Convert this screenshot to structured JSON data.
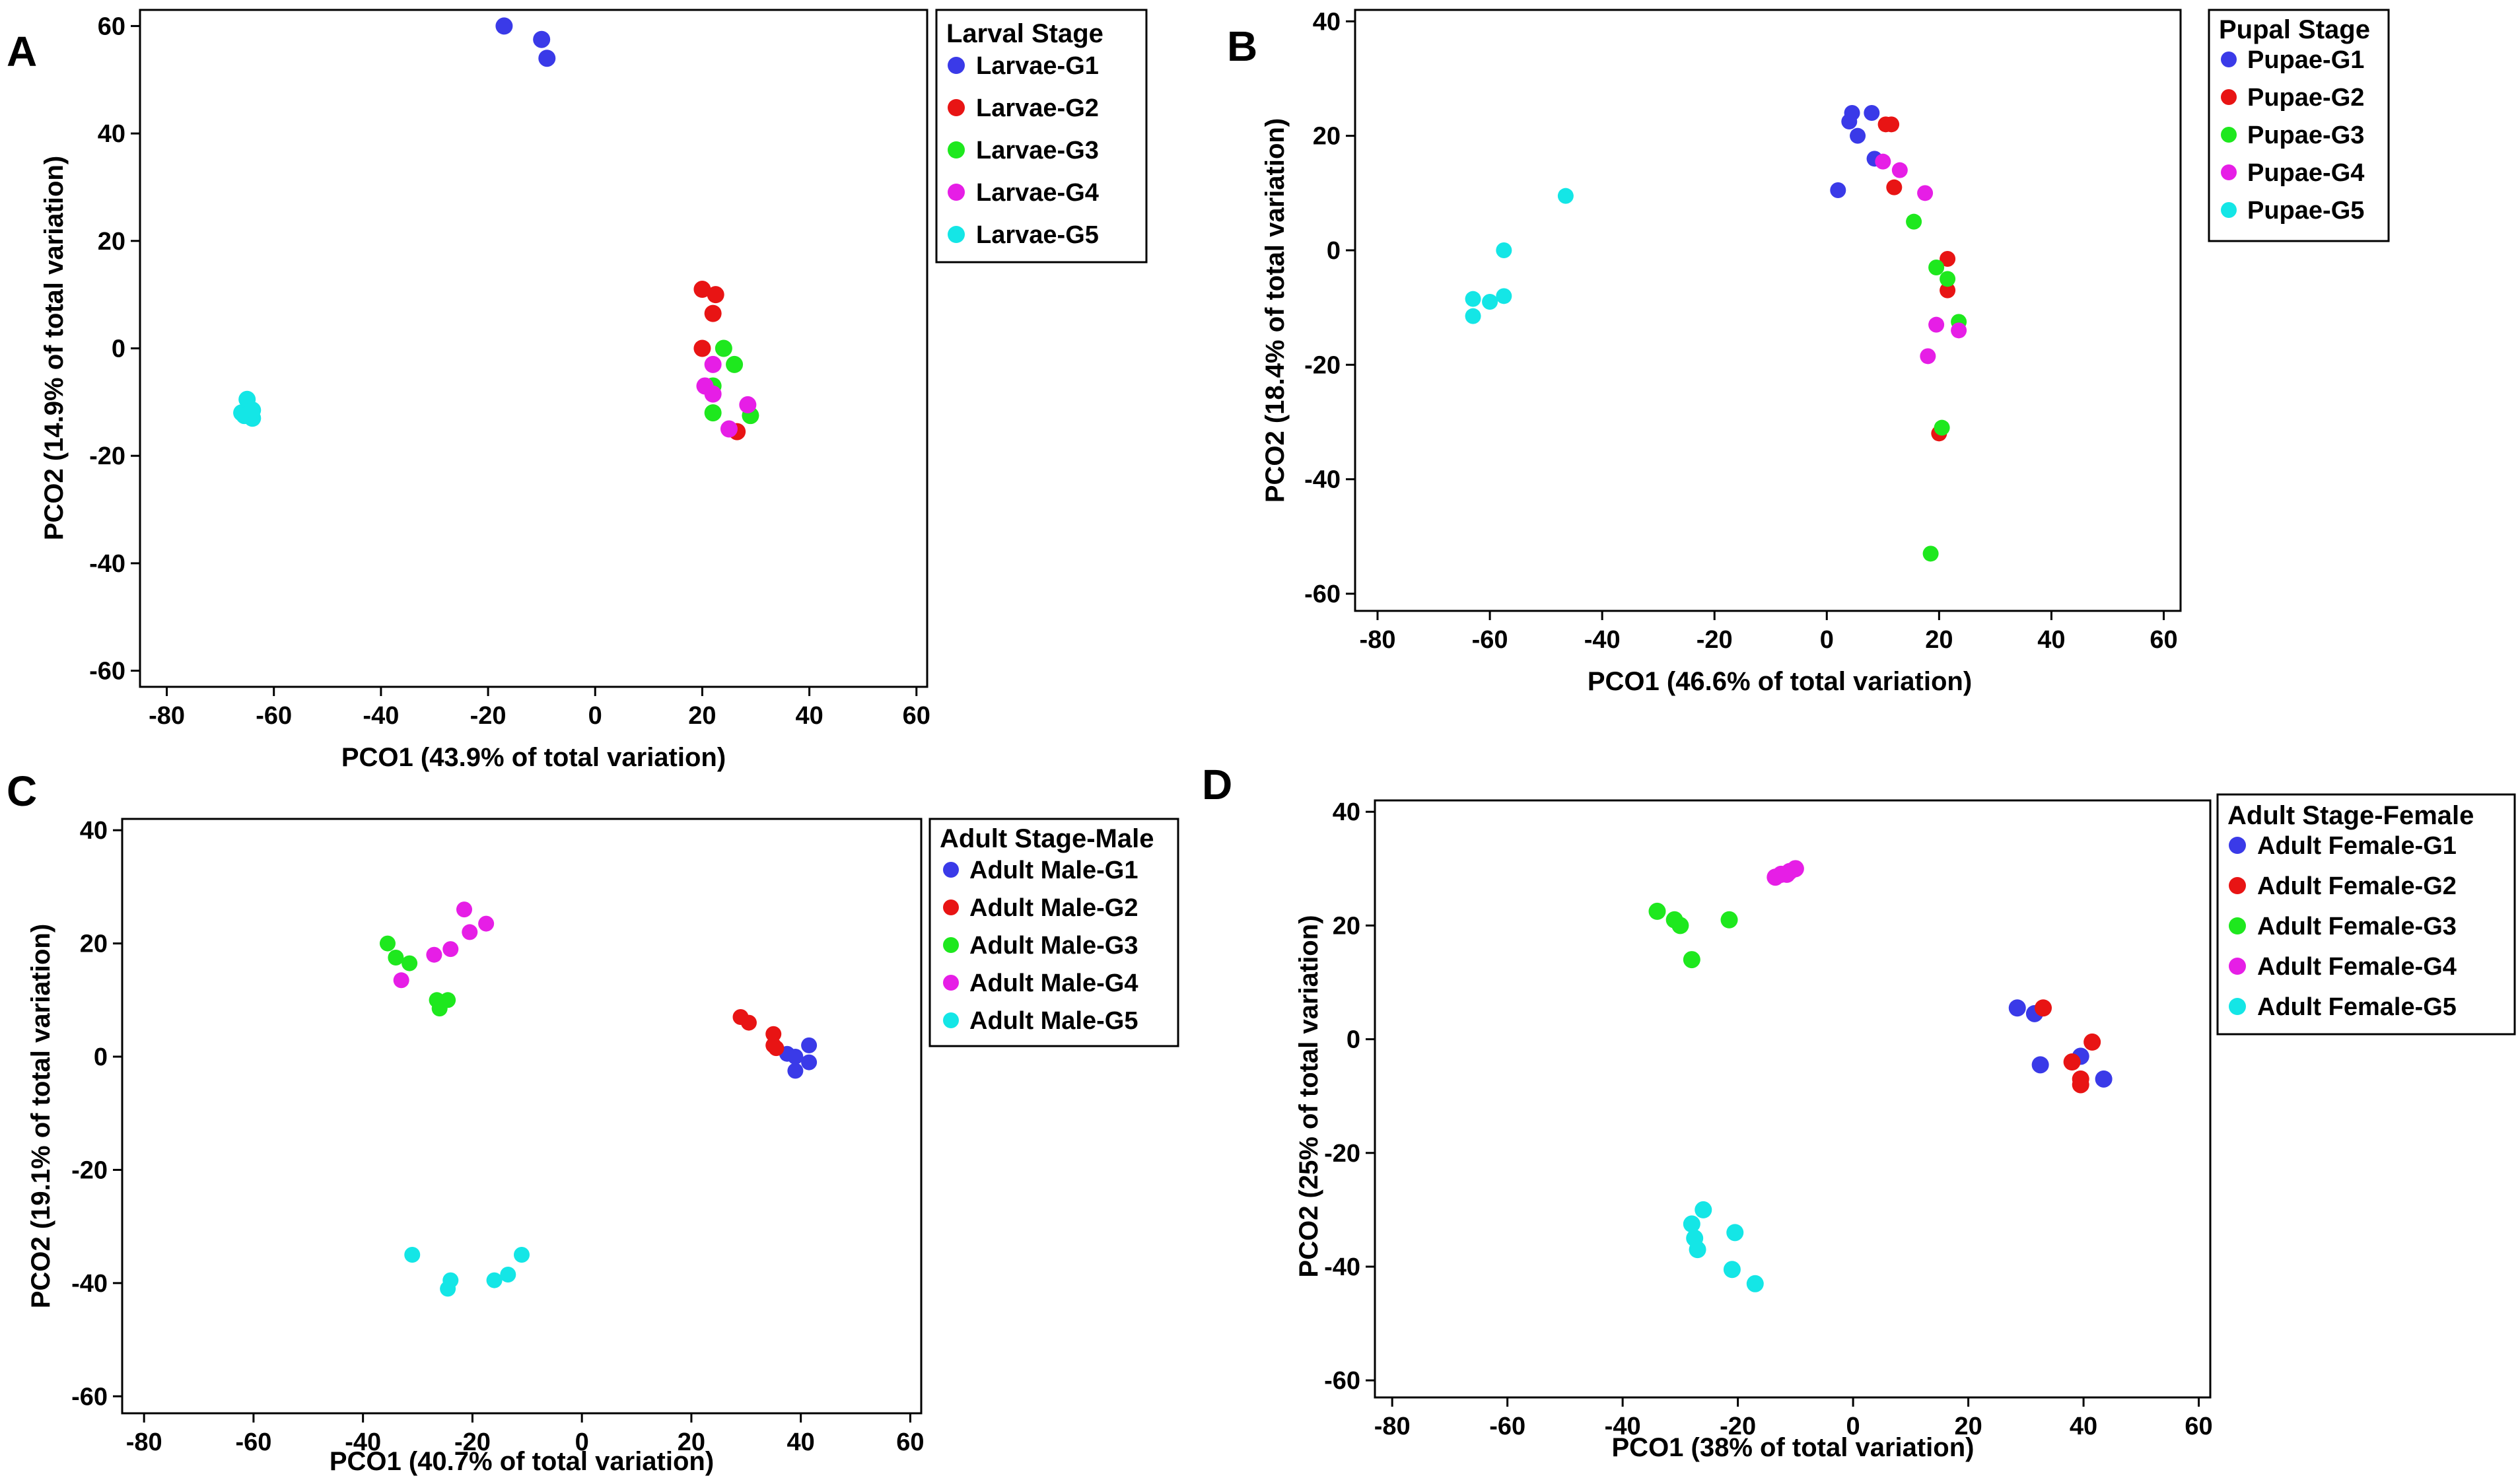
{
  "chart_data": [
    {
      "panel": "A",
      "type": "scatter",
      "xlabel": "PCO1 (43.9% of total variation)",
      "ylabel": "PCO2 (14.9% of total variation)",
      "xlim": [
        -85,
        62
      ],
      "ylim": [
        -63,
        63
      ],
      "xticks": [
        -80,
        -60,
        -40,
        -20,
        0,
        20,
        40,
        60
      ],
      "yticks": [
        -60,
        -40,
        -20,
        0,
        20,
        40,
        60
      ],
      "legend": {
        "title": "Larval Stage",
        "entries": [
          "Larvae-G1",
          "Larvae-G2",
          "Larvae-G3",
          "Larvae-G4",
          "Larvae-G5"
        ],
        "colors": [
          "#3a3ae8",
          "#e81414",
          "#1ee81e",
          "#e61ee6",
          "#14e6e6"
        ]
      },
      "series": [
        {
          "name": "Larvae-G1",
          "points": [
            [
              -17,
              60
            ],
            [
              -10,
              57.5
            ],
            [
              -9,
              54
            ]
          ]
        },
        {
          "name": "Larvae-G2",
          "points": [
            [
              20,
              11
            ],
            [
              22.5,
              10
            ],
            [
              22,
              6.5
            ],
            [
              20,
              0
            ],
            [
              26.5,
              -15.5
            ]
          ]
        },
        {
          "name": "Larvae-G3",
          "points": [
            [
              24,
              0
            ],
            [
              26,
              -3
            ],
            [
              22,
              -12
            ],
            [
              29,
              -12.5
            ],
            [
              22,
              -7
            ]
          ]
        },
        {
          "name": "Larvae-G4",
          "points": [
            [
              20.5,
              -7
            ],
            [
              22,
              -8.5
            ],
            [
              22,
              -3
            ],
            [
              28.5,
              -10.5
            ],
            [
              25,
              -15
            ]
          ]
        },
        {
          "name": "Larvae-G5",
          "points": [
            [
              -66,
              -12
            ],
            [
              -65,
              -9.5
            ],
            [
              -64,
              -13
            ],
            [
              -65.5,
              -12.5
            ],
            [
              -64,
              -11.5
            ]
          ]
        }
      ]
    },
    {
      "panel": "B",
      "type": "scatter",
      "xlabel": "PCO1 (46.6% of total variation)",
      "ylabel": "PCO2 (18.4% of total variation)",
      "xlim": [
        -84,
        63
      ],
      "ylim": [
        -63,
        42
      ],
      "xticks": [
        -80,
        -60,
        -40,
        -20,
        0,
        20,
        40,
        60
      ],
      "yticks": [
        -60,
        -40,
        -20,
        0,
        20,
        40
      ],
      "legend": {
        "title": "Pupal Stage",
        "entries": [
          "Pupae-G1",
          "Pupae-G2",
          "Pupae-G3",
          "Pupae-G4",
          "Pupae-G5"
        ],
        "colors": [
          "#3a3ae8",
          "#e81414",
          "#1ee81e",
          "#e61ee6",
          "#14e6e6"
        ]
      },
      "series": [
        {
          "name": "Pupae-G1",
          "points": [
            [
              4.5,
              24
            ],
            [
              8,
              24
            ],
            [
              4,
              22.5
            ],
            [
              5.5,
              20
            ],
            [
              8.5,
              16
            ],
            [
              2,
              10.5
            ]
          ]
        },
        {
          "name": "Pupae-G2",
          "points": [
            [
              10.5,
              22
            ],
            [
              11.5,
              22
            ],
            [
              12,
              11
            ],
            [
              21.5,
              -1.5
            ],
            [
              21.5,
              -7
            ],
            [
              20,
              -32
            ]
          ]
        },
        {
          "name": "Pupae-G3",
          "points": [
            [
              15.5,
              5
            ],
            [
              19.5,
              -3
            ],
            [
              21.5,
              -5
            ],
            [
              23.5,
              -12.5
            ],
            [
              20.5,
              -31
            ],
            [
              18.5,
              -53
            ]
          ]
        },
        {
          "name": "Pupae-G4",
          "points": [
            [
              10,
              15.5
            ],
            [
              13,
              14
            ],
            [
              17.5,
              10
            ],
            [
              19.5,
              -13
            ],
            [
              23.5,
              -14
            ],
            [
              18,
              -18.5
            ]
          ]
        },
        {
          "name": "Pupae-G5",
          "points": [
            [
              -46.5,
              9.5
            ],
            [
              -57.5,
              0
            ],
            [
              -57.5,
              -8
            ],
            [
              -63,
              -8.5
            ],
            [
              -60,
              -9
            ],
            [
              -63,
              -11.5
            ]
          ]
        }
      ]
    },
    {
      "panel": "C",
      "type": "scatter",
      "xlabel": "PCO1 (40.7% of total variation)",
      "ylabel": "PCO2 (19.1% of total variation)",
      "xlim": [
        -84,
        62
      ],
      "ylim": [
        -63,
        42
      ],
      "xticks": [
        -80,
        -60,
        -40,
        -20,
        0,
        20,
        40,
        60
      ],
      "yticks": [
        -60,
        -40,
        -20,
        0,
        20,
        40
      ],
      "legend": {
        "title": "Adult Stage-Male",
        "entries": [
          "Adult Male-G1",
          "Adult Male-G2",
          "Adult Male-G3",
          "Adult Male-G4",
          "Adult Male-G5"
        ],
        "colors": [
          "#3a3ae8",
          "#e81414",
          "#1ee81e",
          "#e61ee6",
          "#14e6e6"
        ]
      },
      "series": [
        {
          "name": "Adult Male-G1",
          "points": [
            [
              37.5,
              0.5
            ],
            [
              39,
              0
            ],
            [
              41.5,
              2
            ],
            [
              41.5,
              -1
            ],
            [
              39,
              -2.5
            ]
          ]
        },
        {
          "name": "Adult Male-G2",
          "points": [
            [
              29,
              7
            ],
            [
              30.5,
              6
            ],
            [
              35,
              4
            ],
            [
              35,
              2
            ],
            [
              35.5,
              1.5
            ]
          ]
        },
        {
          "name": "Adult Male-G3",
          "points": [
            [
              -35.5,
              20
            ],
            [
              -34,
              17.5
            ],
            [
              -31.5,
              16.5
            ],
            [
              -26.5,
              10
            ],
            [
              -24.5,
              10
            ],
            [
              -26,
              8.5
            ]
          ]
        },
        {
          "name": "Adult Male-G4",
          "points": [
            [
              -21.5,
              26
            ],
            [
              -17.5,
              23.5
            ],
            [
              -20.5,
              22
            ],
            [
              -24,
              19
            ],
            [
              -27,
              18
            ],
            [
              -33,
              13.5
            ]
          ]
        },
        {
          "name": "Adult Male-G5",
          "points": [
            [
              -31,
              -35
            ],
            [
              -11,
              -35
            ],
            [
              -13.5,
              -38.5
            ],
            [
              -16,
              -39.5
            ],
            [
              -24,
              -39.5
            ],
            [
              -24.5,
              -41
            ]
          ]
        }
      ]
    },
    {
      "panel": "D",
      "type": "scatter",
      "xlabel": "PCO1 (38% of total variation)",
      "ylabel": "PCO2 (25% of total variation)",
      "xlim": [
        -83,
        62
      ],
      "ylim": [
        -63,
        42
      ],
      "xticks": [
        -80,
        -60,
        -40,
        -20,
        0,
        20,
        40,
        60
      ],
      "yticks": [
        -60,
        -40,
        -20,
        0,
        20,
        40
      ],
      "legend": {
        "title": "Adult Stage-Female",
        "entries": [
          "Adult Female-G1",
          "Adult Female-G2",
          "Adult Female-G3",
          "Adult Female-G4",
          "Adult Female-G5"
        ],
        "colors": [
          "#3a3ae8",
          "#e81414",
          "#1ee81e",
          "#e61ee6",
          "#14e6e6"
        ]
      },
      "series": [
        {
          "name": "Adult Female-G1",
          "points": [
            [
              28.5,
              5.5
            ],
            [
              31.5,
              4.5
            ],
            [
              32.5,
              -4.5
            ],
            [
              39.5,
              -3
            ],
            [
              43.5,
              -7
            ]
          ]
        },
        {
          "name": "Adult Female-G2",
          "points": [
            [
              33,
              5.5
            ],
            [
              41.5,
              -0.5
            ],
            [
              38,
              -4
            ],
            [
              39.5,
              -7
            ],
            [
              39.5,
              -8
            ]
          ]
        },
        {
          "name": "Adult Female-G3",
          "points": [
            [
              -34,
              22.5
            ],
            [
              -31,
              21
            ],
            [
              -30,
              20
            ],
            [
              -21.5,
              21
            ],
            [
              -28,
              14
            ]
          ]
        },
        {
          "name": "Adult Female-G4",
          "points": [
            [
              -10,
              30
            ],
            [
              -11,
              29.5
            ],
            [
              -12.5,
              29
            ],
            [
              -13.5,
              28.5
            ],
            [
              -11.5,
              29
            ]
          ]
        },
        {
          "name": "Adult Female-G5",
          "points": [
            [
              -26,
              -30
            ],
            [
              -28,
              -32.5
            ],
            [
              -27.5,
              -35
            ],
            [
              -27,
              -37
            ],
            [
              -20.5,
              -34
            ],
            [
              -21,
              -40.5
            ],
            [
              -17,
              -43
            ]
          ]
        }
      ]
    }
  ]
}
